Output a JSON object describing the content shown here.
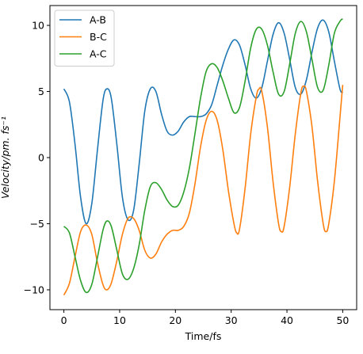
{
  "chart_data": {
    "type": "line",
    "title": "",
    "xlabel": "Time/fs",
    "ylabel": "Velocity/pm. fs⁻¹",
    "xlim": [
      -2.5,
      52.5
    ],
    "ylim": [
      -11.5,
      11.5
    ],
    "xticks": [
      0,
      10,
      20,
      30,
      40,
      50
    ],
    "yticks": [
      -10,
      -5,
      0,
      5,
      10
    ],
    "xtick_labels": [
      "0",
      "10",
      "20",
      "30",
      "40",
      "50"
    ],
    "ytick_labels": [
      "−10",
      "−5",
      "0",
      "5",
      "10"
    ],
    "grid": false,
    "legend_position": "top-left",
    "series": [
      {
        "name": "A-B",
        "color": "#1f77b4",
        "points": [
          [
            0,
            5.2
          ],
          [
            1,
            4.2
          ],
          [
            2,
            1.0
          ],
          [
            3,
            -3.0
          ],
          [
            4,
            -5.0
          ],
          [
            5,
            -3.5
          ],
          [
            6,
            0.5
          ],
          [
            7,
            4.3
          ],
          [
            7.7,
            5.2
          ],
          [
            8.5,
            4.5
          ],
          [
            9.5,
            1.0
          ],
          [
            10.5,
            -3.0
          ],
          [
            11.5,
            -4.7
          ],
          [
            12.5,
            -4.0
          ],
          [
            13.5,
            -0.5
          ],
          [
            14.5,
            3.5
          ],
          [
            15.5,
            5.2
          ],
          [
            16.5,
            5.0
          ],
          [
            17.5,
            3.3
          ],
          [
            18.5,
            2.0
          ],
          [
            19.5,
            1.7
          ],
          [
            20.5,
            2.0
          ],
          [
            21.5,
            2.7
          ],
          [
            22.5,
            3.1
          ],
          [
            23.5,
            3.1
          ],
          [
            24.5,
            3.1
          ],
          [
            25.5,
            3.3
          ],
          [
            26.5,
            4.0
          ],
          [
            27.5,
            5.5
          ],
          [
            28.5,
            7.0
          ],
          [
            29.5,
            8.2
          ],
          [
            30.5,
            8.9
          ],
          [
            31.5,
            8.5
          ],
          [
            32.5,
            7.0
          ],
          [
            33.5,
            5.2
          ],
          [
            34.5,
            4.5
          ],
          [
            35.5,
            5.3
          ],
          [
            36.5,
            7.3
          ],
          [
            37.5,
            9.3
          ],
          [
            38.5,
            10.2
          ],
          [
            39.5,
            9.4
          ],
          [
            40.5,
            7.4
          ],
          [
            41.5,
            5.3
          ],
          [
            42.5,
            4.8
          ],
          [
            43.5,
            5.9
          ],
          [
            44.5,
            8.0
          ],
          [
            45.5,
            9.8
          ],
          [
            46.5,
            10.4
          ],
          [
            47.5,
            9.5
          ],
          [
            48.5,
            7.3
          ],
          [
            49.5,
            5.2
          ],
          [
            50,
            4.9
          ]
        ]
      },
      {
        "name": "B-C",
        "color": "#ff7f0e",
        "points": [
          [
            0,
            -10.4
          ],
          [
            1,
            -9.5
          ],
          [
            2,
            -7.5
          ],
          [
            3,
            -5.6
          ],
          [
            4,
            -5.1
          ],
          [
            5,
            -5.8
          ],
          [
            6,
            -7.9
          ],
          [
            7,
            -9.6
          ],
          [
            7.7,
            -10.0
          ],
          [
            8.5,
            -9.5
          ],
          [
            9.5,
            -7.8
          ],
          [
            10.5,
            -5.8
          ],
          [
            11.5,
            -4.6
          ],
          [
            12.5,
            -4.6
          ],
          [
            13.5,
            -5.5
          ],
          [
            14.5,
            -7.0
          ],
          [
            15.5,
            -7.6
          ],
          [
            16.5,
            -7.3
          ],
          [
            17.5,
            -6.4
          ],
          [
            18.5,
            -5.8
          ],
          [
            19.5,
            -5.5
          ],
          [
            20.5,
            -5.5
          ],
          [
            21.5,
            -5.2
          ],
          [
            22.5,
            -4.2
          ],
          [
            23.5,
            -2.0
          ],
          [
            24.5,
            0.8
          ],
          [
            25.5,
            2.8
          ],
          [
            26.5,
            3.5
          ],
          [
            27.5,
            2.8
          ],
          [
            28.5,
            0.6
          ],
          [
            29.5,
            -2.5
          ],
          [
            30.5,
            -5.0
          ],
          [
            31,
            -5.7
          ],
          [
            31.5,
            -5.4
          ],
          [
            32.5,
            -2.3
          ],
          [
            33.5,
            1.8
          ],
          [
            34.5,
            4.6
          ],
          [
            35,
            5.2
          ],
          [
            35.5,
            5.0
          ],
          [
            36.5,
            2.3
          ],
          [
            37.5,
            -1.8
          ],
          [
            38.5,
            -5.0
          ],
          [
            39,
            -5.6
          ],
          [
            39.5,
            -5.2
          ],
          [
            40.5,
            -2.2
          ],
          [
            41.5,
            1.8
          ],
          [
            42.5,
            4.9
          ],
          [
            43,
            5.4
          ],
          [
            43.5,
            5.0
          ],
          [
            44.5,
            2.3
          ],
          [
            45.5,
            -1.8
          ],
          [
            46.5,
            -5.0
          ],
          [
            47,
            -5.6
          ],
          [
            47.5,
            -5.0
          ],
          [
            48.5,
            -1.8
          ],
          [
            49.5,
            3.0
          ],
          [
            50,
            5.5
          ]
        ]
      },
      {
        "name": "A-C",
        "color": "#2ca02c",
        "points": [
          [
            0,
            -5.2
          ],
          [
            1,
            -5.7
          ],
          [
            2,
            -7.5
          ],
          [
            3,
            -9.3
          ],
          [
            4,
            -10.2
          ],
          [
            5,
            -9.6
          ],
          [
            6,
            -7.6
          ],
          [
            7,
            -5.5
          ],
          [
            7.7,
            -4.8
          ],
          [
            8.5,
            -5.2
          ],
          [
            9.5,
            -7.0
          ],
          [
            10.5,
            -8.8
          ],
          [
            11.5,
            -9.2
          ],
          [
            12.5,
            -8.4
          ],
          [
            13.5,
            -6.6
          ],
          [
            14.5,
            -4.0
          ],
          [
            15.5,
            -2.2
          ],
          [
            16.5,
            -1.9
          ],
          [
            17.5,
            -2.4
          ],
          [
            18.5,
            -3.2
          ],
          [
            19.5,
            -3.7
          ],
          [
            20.5,
            -3.6
          ],
          [
            21.5,
            -2.6
          ],
          [
            22.5,
            -0.8
          ],
          [
            23.5,
            1.8
          ],
          [
            24.5,
            4.5
          ],
          [
            25.5,
            6.5
          ],
          [
            26.5,
            7.1
          ],
          [
            27.5,
            6.8
          ],
          [
            28.5,
            5.8
          ],
          [
            29.5,
            4.5
          ],
          [
            30.5,
            3.4
          ],
          [
            31.5,
            3.8
          ],
          [
            32.5,
            5.8
          ],
          [
            33.5,
            8.3
          ],
          [
            34.5,
            9.7
          ],
          [
            35.5,
            9.7
          ],
          [
            36.5,
            8.5
          ],
          [
            37.5,
            6.5
          ],
          [
            38.5,
            4.8
          ],
          [
            39.5,
            5.0
          ],
          [
            40.5,
            7.1
          ],
          [
            41.5,
            9.4
          ],
          [
            42.5,
            10.3
          ],
          [
            43.5,
            9.5
          ],
          [
            44.5,
            7.4
          ],
          [
            45.5,
            5.3
          ],
          [
            46.5,
            5.1
          ],
          [
            47.5,
            7.0
          ],
          [
            48.5,
            9.4
          ],
          [
            49.5,
            10.3
          ],
          [
            50,
            10.5
          ]
        ]
      }
    ]
  }
}
